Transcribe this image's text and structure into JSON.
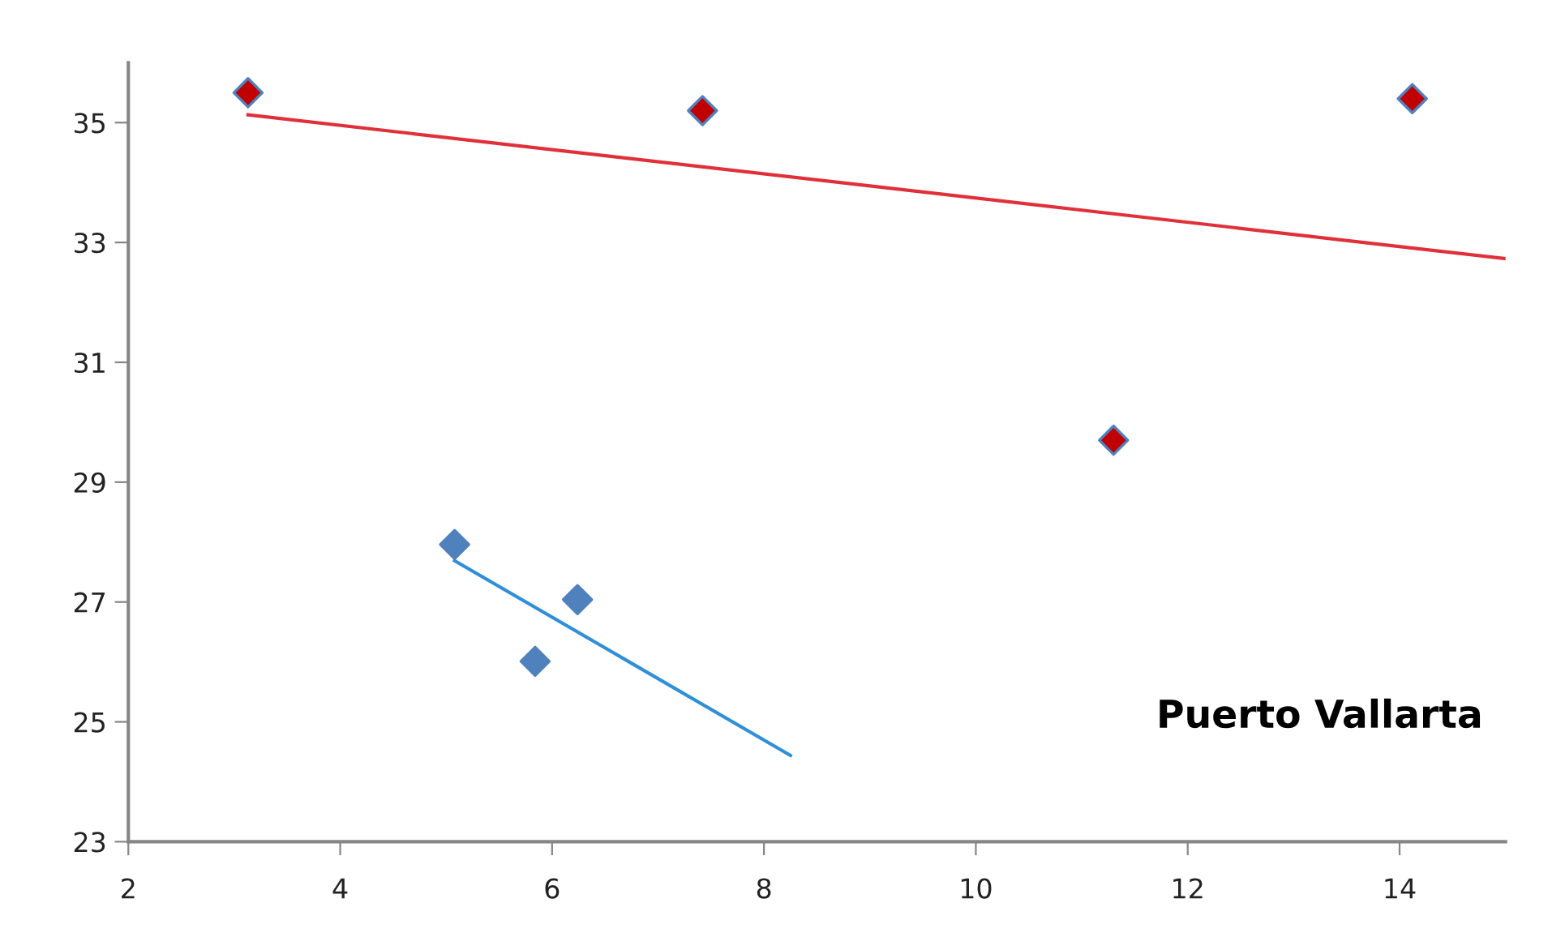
{
  "chart_data": {
    "type": "scatter",
    "marker": "diamond",
    "grid": false,
    "legend": false,
    "xlim": [
      2,
      15
    ],
    "ylim": [
      23,
      36
    ],
    "xticks": [
      2,
      4,
      6,
      8,
      10,
      12,
      14
    ],
    "yticks": [
      23,
      25,
      27,
      29,
      31,
      33,
      35
    ],
    "annotations": [
      "Puerto Vallarta"
    ],
    "series": [
      {
        "color": "#c00000",
        "x": [
          3.13,
          7.42,
          11.3,
          14.12
        ],
        "values": [
          35.5,
          35.2,
          29.7,
          35.4
        ]
      },
      {
        "color": "#4f81bd",
        "x": [
          5.08,
          6.24,
          5.84
        ],
        "values": [
          27.96,
          27.04,
          26.01
        ]
      },
      {
        "type": "line",
        "color": "#e0303a",
        "marker": "none",
        "x": [
          3.13,
          15
        ],
        "values": [
          35.13,
          32.73
        ]
      },
      {
        "type": "line",
        "color": "#2f8fd8",
        "marker": "none",
        "x": [
          5.08,
          8.25
        ],
        "values": [
          27.69,
          24.44
        ]
      }
    ]
  }
}
